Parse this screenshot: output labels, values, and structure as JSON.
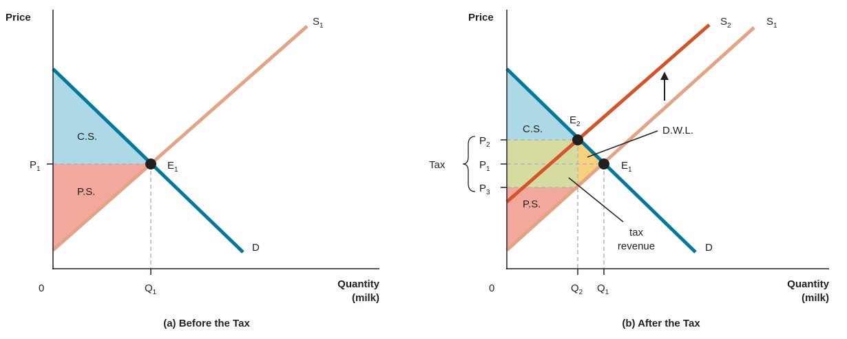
{
  "colors": {
    "cs_area": "#add8e6",
    "ps_area": "#f2a99b",
    "tax_revenue_area": "#d6dca0",
    "dwl_area": "#f7d17d",
    "demand": "#00799a",
    "supply_s1": "#e3a486",
    "supply_s2": "#d4532b",
    "axis": "#231f20",
    "dashed": "#b3b3b3"
  },
  "panel_a": {
    "caption": "(a) Before the Tax",
    "y_axis_label": "Price",
    "x_axis_label_line1": "Quantity",
    "x_axis_label_line2": "(milk)",
    "origin": "0",
    "price_tick": "P",
    "price_tick_sub": "1",
    "qty_tick": "Q",
    "qty_tick_sub": "1",
    "supply_label": "S",
    "supply_label_sub": "1",
    "demand_label": "D",
    "equilibrium_label": "E",
    "equilibrium_label_sub": "1",
    "cs_label": "C.S.",
    "ps_label": "P.S."
  },
  "panel_b": {
    "caption": "(b) After the Tax",
    "y_axis_label": "Price",
    "x_axis_label_line1": "Quantity",
    "x_axis_label_line2": "(milk)",
    "origin": "0",
    "price_ticks": [
      {
        "main": "P",
        "sub": "2"
      },
      {
        "main": "P",
        "sub": "1"
      },
      {
        "main": "P",
        "sub": "3"
      }
    ],
    "qty_ticks": [
      {
        "main": "Q",
        "sub": "2"
      },
      {
        "main": "Q",
        "sub": "1"
      }
    ],
    "tax_label": "Tax",
    "supply_s2_label": "S",
    "supply_s2_label_sub": "2",
    "supply_s1_label": "S",
    "supply_s1_label_sub": "1",
    "demand_label": "D",
    "e2_label": "E",
    "e2_label_sub": "2",
    "e1_label": "E",
    "e1_label_sub": "1",
    "cs_label": "C.S.",
    "ps_label": "P.S.",
    "dwl_label": "D.W.L.",
    "tax_revenue_line1": "tax",
    "tax_revenue_line2": "revenue"
  }
}
